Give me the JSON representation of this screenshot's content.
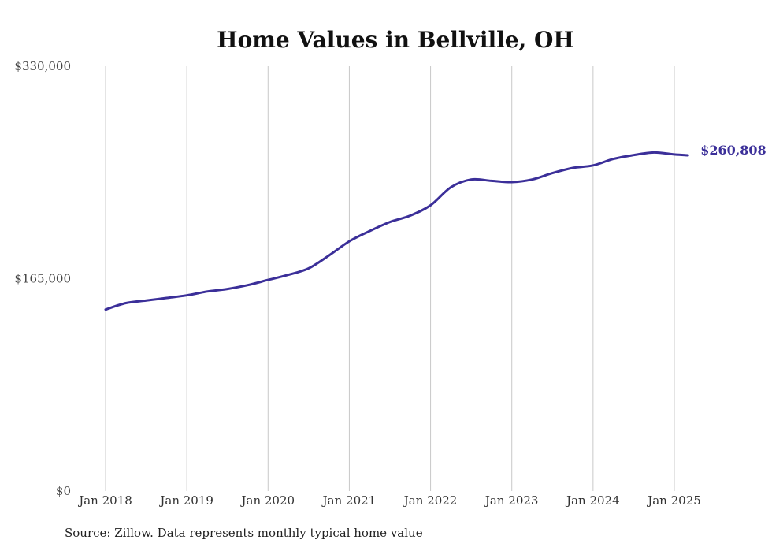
{
  "chart_data": {
    "type": "line",
    "title": "Home Values in Bellville, OH",
    "xlabel": "",
    "ylabel": "",
    "ylim": [
      0,
      330000
    ],
    "xlim": [
      "2018-01",
      "2025-03"
    ],
    "grid": "vertical",
    "y_ticks": [
      "$0",
      "$165,000",
      "$330,000"
    ],
    "y_tick_values": [
      0,
      165000,
      330000
    ],
    "x_ticks": [
      "Jan 2018",
      "Jan 2019",
      "Jan 2020",
      "Jan 2021",
      "Jan 2022",
      "Jan 2023",
      "Jan 2024",
      "Jan 2025"
    ],
    "x_tick_dates": [
      "2018-01",
      "2019-01",
      "2020-01",
      "2021-01",
      "2022-01",
      "2023-01",
      "2024-01",
      "2025-01"
    ],
    "end_label": "$260,808",
    "line_color": "#3b2f99",
    "series": [
      {
        "x": [
          "2018-01",
          "2018-04",
          "2018-07",
          "2018-10",
          "2019-01",
          "2019-04",
          "2019-07",
          "2019-10",
          "2020-01",
          "2020-04",
          "2020-07",
          "2020-10",
          "2021-01",
          "2021-04",
          "2021-07",
          "2021-10",
          "2022-01",
          "2022-04",
          "2022-07",
          "2022-10",
          "2023-01",
          "2023-04",
          "2023-07",
          "2023-10",
          "2024-01",
          "2024-04",
          "2024-07",
          "2024-10",
          "2025-01",
          "2025-03"
        ],
        "values": [
          141000,
          146000,
          148000,
          150000,
          152000,
          155000,
          157000,
          160000,
          164000,
          168000,
          173000,
          183000,
          194000,
          202000,
          209000,
          214000,
          222000,
          236000,
          242000,
          241000,
          240000,
          242000,
          247000,
          251000,
          253000,
          258000,
          261000,
          263000,
          261500,
          260808
        ]
      }
    ]
  },
  "source_text": "Source: Zillow. Data represents monthly typical home value"
}
